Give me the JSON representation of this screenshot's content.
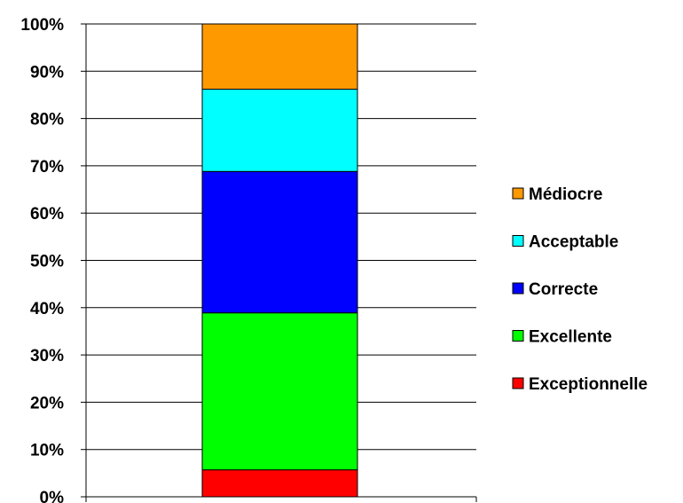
{
  "chart_data": {
    "type": "bar",
    "stacked": true,
    "percent_axis": true,
    "categories": [
      ""
    ],
    "ylim": [
      0,
      100
    ],
    "y_ticks": [
      "0%",
      "10%",
      "20%",
      "30%",
      "40%",
      "50%",
      "60%",
      "70%",
      "80%",
      "90%",
      "100%"
    ],
    "grid": "horizontal",
    "legend_position": "right",
    "series": [
      {
        "name": "Exceptionnelle",
        "values": [
          5.7
        ],
        "color": "#ff0000"
      },
      {
        "name": "Excellente",
        "values": [
          33.2
        ],
        "color": "#00ff00"
      },
      {
        "name": "Correcte",
        "values": [
          29.9
        ],
        "color": "#0000ff"
      },
      {
        "name": "Acceptable",
        "values": [
          17.4
        ],
        "color": "#00ffff"
      },
      {
        "name": "Médiocre",
        "values": [
          13.8
        ],
        "color": "#ff9900"
      }
    ]
  }
}
